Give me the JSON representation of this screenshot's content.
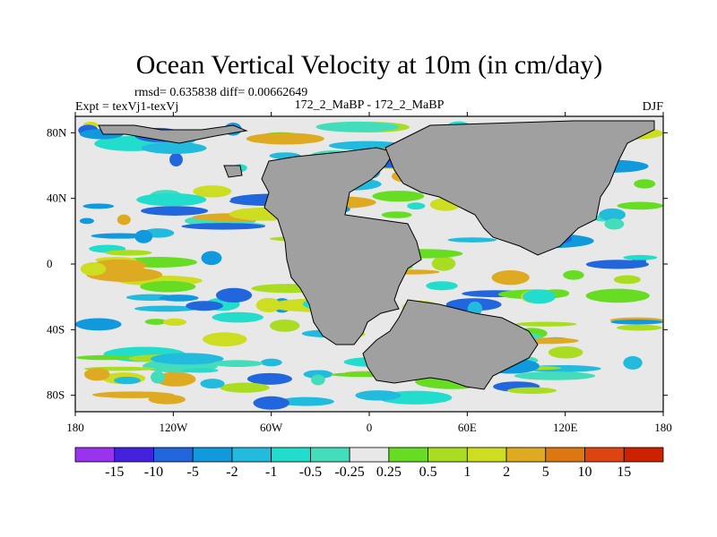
{
  "chart_data": {
    "type": "heatmap",
    "title": "Ocean Vertical Velocity at 10m (in cm/day)",
    "stats_line": "rmsd= 0.635838 diff= 0.00662649",
    "left_label": "Expt = texVj1-texVj",
    "center_label": "172_2_MaBP - 172_2_MaBP",
    "right_label": "DJF",
    "xlim": [
      -180,
      180
    ],
    "ylim": [
      -90,
      90
    ],
    "x_ticks": [
      {
        "value": -180,
        "label": "180"
      },
      {
        "value": -120,
        "label": "120W"
      },
      {
        "value": -60,
        "label": "60W"
      },
      {
        "value": 0,
        "label": "0"
      },
      {
        "value": 60,
        "label": "60E"
      },
      {
        "value": 120,
        "label": "120E"
      },
      {
        "value": 180,
        "label": "180"
      }
    ],
    "y_ticks": [
      {
        "value": 80,
        "label": "80N"
      },
      {
        "value": 40,
        "label": "40N"
      },
      {
        "value": 0,
        "label": "0"
      },
      {
        "value": -40,
        "label": "40S"
      },
      {
        "value": -80,
        "label": "80S"
      }
    ],
    "land_color": "#a0a0a0",
    "colorbar": {
      "levels": [
        "-15",
        "-10",
        "-5",
        "-2",
        "-1",
        "-0.5",
        "-0.25",
        "0.25",
        "0.5",
        "1",
        "2",
        "5",
        "10",
        "15"
      ],
      "colors": [
        "#9933ee",
        "#4422dd",
        "#2266dd",
        "#1199dd",
        "#22bbdd",
        "#22ddcc",
        "#44ddbb",
        "#e8e8e8",
        "#66dd22",
        "#aadd22",
        "#ccdd22",
        "#ddaa22",
        "#dd7711",
        "#dd4411",
        "#cc2200"
      ]
    }
  }
}
